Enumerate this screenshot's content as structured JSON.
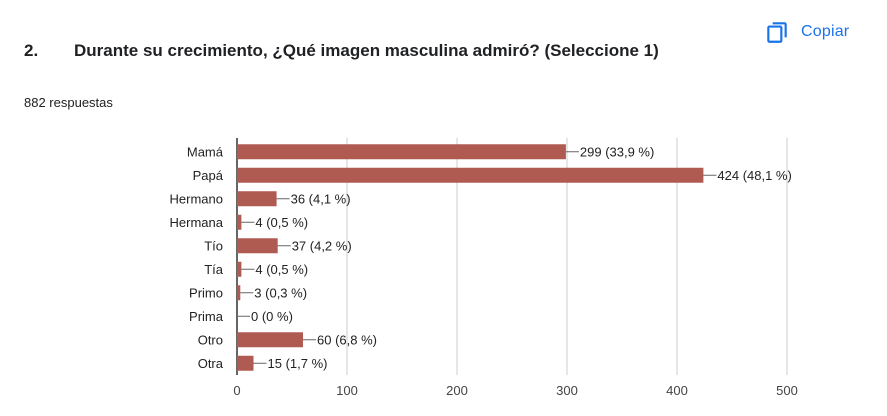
{
  "copy_button": {
    "label": "Copiar",
    "icon": "copy-icon"
  },
  "question": {
    "number": "2.",
    "text": "Durante su crecimiento, ¿Qué imagen masculina admiró? (Seleccione 1)"
  },
  "responses_count": "882 respuestas",
  "colors": {
    "bar": "#b05b52",
    "accent": "#1a73e8",
    "grid": "#cccccc",
    "axis": "#333333"
  },
  "chart_data": {
    "type": "bar",
    "orientation": "horizontal",
    "categories": [
      "Mamá",
      "Papá",
      "Hermano",
      "Hermana",
      "Tío",
      "Tía",
      "Primo",
      "Prima",
      "Otro",
      "Otra"
    ],
    "values": [
      299,
      424,
      36,
      4,
      37,
      4,
      3,
      0,
      60,
      15
    ],
    "data_labels": [
      "299 (33,9 %)",
      "424 (48,1 %)",
      "36 (4,1 %)",
      "4 (0,5 %)",
      "37 (4,2 %)",
      "4 (0,5 %)",
      "3 (0,3 %)",
      "0 (0 %)",
      "60 (6,8 %)",
      "15 (1,7 %)"
    ],
    "xlim": [
      0,
      500
    ],
    "xticks": [
      "0",
      "100",
      "200",
      "300",
      "400",
      "500"
    ],
    "xtick_values": [
      0,
      100,
      200,
      300,
      400,
      500
    ],
    "grid": true,
    "legend": "none"
  }
}
